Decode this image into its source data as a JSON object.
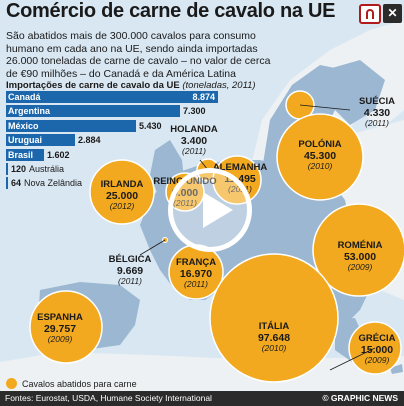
{
  "title": "Comércio de carne de cavalo na UE",
  "intro": "São abatidos mais de 300.000 cavalos para consumo humano em cada ano na UE, sendo ainda importadas 26.000 toneladas de carne de cavalo – no valor de cerca de €90 milhões – do Canadá e da América Latina",
  "imports_title": "Importações de carne de cavalo da UE",
  "imports_unit": "(toneladas, 2011)",
  "legend_label": "Cavalos abatidos para carne",
  "footer": {
    "source": "Fontes: Eurostat, USDA, Humane Society International",
    "brand": "© GRAPHIC NEWS"
  },
  "icons": {
    "logo": "magnet-logo-icon",
    "close": "close-icon",
    "play": "play-icon"
  },
  "colors": {
    "bar": "#1c67ab",
    "bubble": "#f2a91f",
    "sea": "#d8e7f2",
    "eu_land": "#9bb7d1",
    "other_land": "#eef1f3"
  },
  "chart_data": [
    {
      "type": "bar",
      "orientation": "horizontal",
      "title": "Importações de carne de cavalo da UE",
      "unit": "toneladas, 2011",
      "categories": [
        "Canadá",
        "Argentina",
        "México",
        "Uruguai",
        "Brasil",
        "Austrália",
        "Nova Zelândia"
      ],
      "values": [
        8874,
        7300,
        5430,
        2884,
        1602,
        120,
        64
      ],
      "labels": [
        "8.874",
        "7.300",
        "5.430",
        "2.884",
        "1.602",
        "120",
        "64"
      ]
    },
    {
      "type": "scatter",
      "subtype": "bubble-map",
      "legend": "Cavalos abatidos para carne",
      "points": [
        {
          "name": "SUÉCIA",
          "value": 4330,
          "label": "4.330",
          "year": "(2011)"
        },
        {
          "name": "HOLANDA",
          "value": 3400,
          "label": "3.400",
          "year": "(2011)"
        },
        {
          "name": "POLÓNIA",
          "value": 45300,
          "label": "45.300",
          "year": "(2010)"
        },
        {
          "name": "IRLANDA",
          "value": 25000,
          "label": "25.000",
          "year": "(2012)"
        },
        {
          "name": "REINO UNIDO",
          "value": 9000,
          "label": "9.000",
          "year": "(2011)"
        },
        {
          "name": "ALEMANHA",
          "value": 11495,
          "label": "11.495",
          "year": "(2011)"
        },
        {
          "name": "BÉLGICA",
          "value": 9669,
          "label": "9.669",
          "year": "(2011)"
        },
        {
          "name": "FRANÇA",
          "value": 16970,
          "label": "16.970",
          "year": "(2011)"
        },
        {
          "name": "ROMÉNIA",
          "value": 53000,
          "label": "53.000",
          "year": "(2009)"
        },
        {
          "name": "ESPANHA",
          "value": 29757,
          "label": "29.757",
          "year": "(2009)"
        },
        {
          "name": "ITÁLIA",
          "value": 97648,
          "label": "97.648",
          "year": "(2010)"
        },
        {
          "name": "GRÉCIA",
          "value": 15000,
          "label": "15.000",
          "year": "(2009)"
        }
      ]
    }
  ]
}
